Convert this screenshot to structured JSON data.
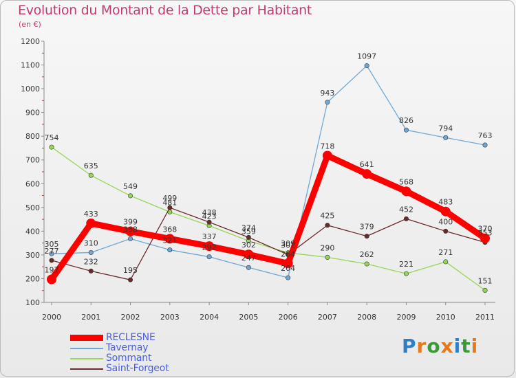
{
  "header": {
    "title": "Evolution du Montant de la Dette par Habitant",
    "subtitle": "(en €)"
  },
  "legend": {
    "items": [
      {
        "label": "RECLESNE",
        "color": "#ff0000",
        "width": 9
      },
      {
        "label": "Tavernay",
        "color": "#6fa7d4",
        "width": 1.5
      },
      {
        "label": "Sommant",
        "color": "#96d656",
        "width": 1.5
      },
      {
        "label": "Saint-Forgeot",
        "color": "#6b2a2a",
        "width": 1.5
      }
    ]
  },
  "logo": {
    "letters": [
      "P",
      "r",
      "o",
      "x",
      "i",
      "t",
      "i"
    ],
    "colors": [
      "#2f7fc5",
      "#e5791f",
      "#3a9a3a",
      "#e5791f",
      "#2f7fc5",
      "#3a9a3a",
      "#e5791f"
    ]
  },
  "chart_data": {
    "type": "line",
    "title": "Evolution du Montant de la Dette par Habitant",
    "subtitle": "(en €)",
    "x": [
      "2000",
      "2001",
      "2002",
      "2003",
      "2004",
      "2005",
      "2006",
      "2007",
      "2008",
      "2009",
      "2010",
      "2011"
    ],
    "ylim": [
      100,
      1200
    ],
    "yticks": [
      100,
      200,
      300,
      400,
      500,
      600,
      700,
      800,
      900,
      1000,
      1100,
      1200
    ],
    "grid": false,
    "legend_position": "bottom-left",
    "series": [
      {
        "name": "RECLESNE",
        "color": "#ff0000",
        "values": [
          197,
          433,
          399,
          368,
          337,
          302,
          264,
          718,
          641,
          568,
          483,
          370
        ]
      },
      {
        "name": "Tavernay",
        "color": "#6fa7d4",
        "values": [
          305,
          310,
          368,
          321,
          292,
          247,
          204,
          943,
          1097,
          826,
          794,
          763
        ]
      },
      {
        "name": "Sommant",
        "color": "#96d656",
        "values": [
          754,
          635,
          549,
          481,
          423,
          359,
          309,
          290,
          262,
          221,
          271,
          151
        ]
      },
      {
        "name": "Saint-Forgeot",
        "color": "#6b2a2a",
        "values": [
          277,
          232,
          195,
          499,
          438,
          374,
          301,
          425,
          379,
          452,
          400,
          353
        ]
      }
    ]
  }
}
